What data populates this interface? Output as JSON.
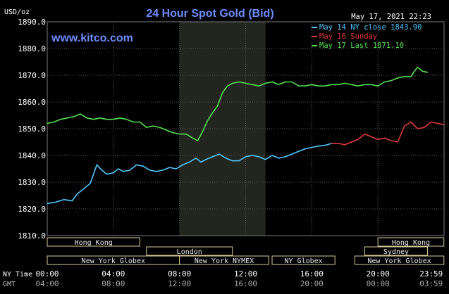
{
  "header": {
    "unit": "USD/oz",
    "title": "24 Hour Spot Gold (Bid)",
    "datetime": "May 17, 2021 22:23",
    "site": "www.kitco.com"
  },
  "legend": [
    {
      "label": "May 14 NY close 1843.90",
      "color": "#4fc8ff"
    },
    {
      "label": "May 16 Sunday",
      "color": "#e03a3a"
    },
    {
      "label": "May 17 Last 1871.10",
      "color": "#52e24f"
    }
  ],
  "axis_row_labels": {
    "ny_time": "NY Time",
    "gmt": "GMT"
  },
  "sessions": [
    {
      "label": "Hong Kong"
    },
    {
      "label": "London"
    },
    {
      "label": "New York Globex"
    },
    {
      "label": "New York NYMEX"
    },
    {
      "label": "NY Globex"
    },
    {
      "label": "Hong Kong"
    },
    {
      "label": "Sydney"
    },
    {
      "label": "New York Globex"
    }
  ],
  "chart_data": {
    "type": "line",
    "title": "24 Hour Spot Gold (Bid)",
    "ylabel": "USD/oz",
    "ylim": [
      1810,
      1890
    ],
    "xlim": [
      0,
      24
    ],
    "grid": true,
    "legend_position": "top-right",
    "y_ticks": [
      "1810.0",
      "1820.0",
      "1830.0",
      "1840.0",
      "1850.0",
      "1860.0",
      "1870.0",
      "1880.0",
      "1890.0"
    ],
    "x_ticks_ny": [
      "00:00",
      "04:00",
      "08:00",
      "12:00",
      "16:00",
      "20:00",
      "23:59"
    ],
    "x_ticks_gmt": [
      "04:00",
      "08:00",
      "12:00",
      "16:00",
      "20:00",
      "00:00",
      "03:59"
    ],
    "series": [
      {
        "name": "May 14 NY close 1843.90",
        "color": "#4fc8ff",
        "x": [
          0,
          0.5,
          1,
          1.5,
          1.8,
          2.2,
          2.6,
          3.0,
          3.3,
          3.6,
          4.0,
          4.3,
          4.6,
          5.0,
          5.4,
          5.8,
          6.2,
          6.6,
          7.0,
          7.4,
          7.8,
          8.2,
          8.6,
          9.0,
          9.3,
          9.6,
          10.0,
          10.4,
          10.8,
          11.2,
          11.6,
          12.0,
          12.4,
          12.8,
          13.2,
          13.6,
          14.0,
          14.4,
          14.8,
          15.2,
          15.6,
          16.0,
          16.4,
          16.8,
          17.2
        ],
        "y": [
          1822,
          1822.5,
          1823.5,
          1823,
          1825.5,
          1827.5,
          1829.5,
          1836.5,
          1834.5,
          1833,
          1833.5,
          1835,
          1834,
          1834.5,
          1836.5,
          1836,
          1834.5,
          1834,
          1834.5,
          1835.5,
          1835,
          1836.5,
          1837.5,
          1839,
          1837.5,
          1838.5,
          1839.5,
          1840.5,
          1839,
          1838,
          1838,
          1839.5,
          1840,
          1839.5,
          1838.5,
          1840,
          1839,
          1839.5,
          1840.5,
          1841.5,
          1842.5,
          1843,
          1843.5,
          1843.8,
          1844.5
        ]
      },
      {
        "name": "May 16 Sunday",
        "color": "#e03a3a",
        "x": [
          17.2,
          17.6,
          18.0,
          18.4,
          18.8,
          19.2,
          19.6,
          20.0,
          20.4,
          20.8,
          21.2,
          21.6,
          22.0,
          22.4,
          22.8,
          23.2,
          23.6,
          23.99
        ],
        "y": [
          1844.5,
          1844.5,
          1844,
          1845,
          1846,
          1848,
          1847,
          1846,
          1846.5,
          1845.5,
          1845,
          1851,
          1852.5,
          1850,
          1850.5,
          1852.5,
          1852,
          1851.5
        ]
      },
      {
        "name": "May 17 Last 1871.10",
        "color": "#52e24f",
        "x": [
          0,
          0.4,
          0.8,
          1.2,
          1.6,
          2.0,
          2.4,
          2.8,
          3.2,
          3.6,
          4.0,
          4.4,
          4.8,
          5.2,
          5.6,
          6.0,
          6.4,
          6.8,
          7.2,
          7.6,
          8.0,
          8.4,
          8.8,
          9.1,
          9.4,
          9.7,
          10.0,
          10.3,
          10.6,
          10.9,
          11.2,
          11.6,
          12.0,
          12.4,
          12.8,
          13.2,
          13.6,
          14.0,
          14.4,
          14.8,
          15.2,
          15.6,
          16.0,
          16.4,
          16.8,
          17.2,
          17.6,
          18.0,
          18.4,
          18.8,
          19.2,
          19.6,
          20.0,
          20.4,
          20.8,
          21.2,
          21.6,
          22.0,
          22.2,
          22.4,
          22.7,
          23.0
        ],
        "y": [
          1852,
          1852.5,
          1853.5,
          1854,
          1854.5,
          1855.5,
          1854,
          1853.5,
          1854,
          1853.5,
          1853.5,
          1854,
          1853.5,
          1852.5,
          1852.5,
          1850.5,
          1851,
          1850.5,
          1849.5,
          1848.5,
          1848,
          1848,
          1846.5,
          1845.5,
          1849,
          1853,
          1856,
          1858.5,
          1863.5,
          1866,
          1867,
          1867.5,
          1867,
          1866.5,
          1866,
          1867,
          1867.5,
          1866.5,
          1867.5,
          1867.5,
          1866,
          1866,
          1866.5,
          1866,
          1866,
          1866.5,
          1866.5,
          1867,
          1866.5,
          1866,
          1866.5,
          1866.5,
          1866,
          1867.5,
          1868,
          1869,
          1869.5,
          1869.5,
          1871.5,
          1873,
          1871.5,
          1871.1
        ]
      }
    ]
  }
}
